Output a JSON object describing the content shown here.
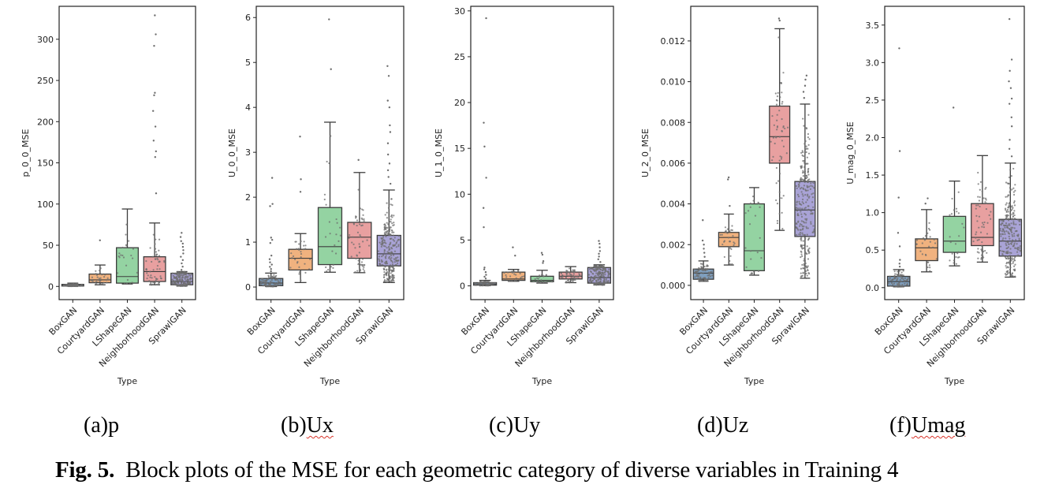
{
  "figure": {
    "caption_label": "Fig. 5.",
    "caption_text": "Block plots of the MSE for each geometric category of diverse variables in Training 4"
  },
  "sublabels": [
    {
      "prefix": "(a)",
      "var": "p",
      "squiggle": false
    },
    {
      "prefix": "(b)",
      "var": "Ux",
      "squiggle": true
    },
    {
      "prefix": "(c)",
      "var": "Uy",
      "squiggle": false
    },
    {
      "prefix": "(d)",
      "var": "Uz",
      "squiggle": false
    },
    {
      "prefix": "(f)",
      "var": "Umag",
      "squiggle": true
    }
  ],
  "colors": {
    "BoxGAN": "#7f9fbf",
    "CourtyardGAN": "#f0b27f",
    "LShapeGAN": "#94d3a2",
    "NeighborhoodGAN": "#e8a0a0",
    "SprawlGAN": "#a9a3d6"
  },
  "chart_data": [
    {
      "type": "box",
      "title": "",
      "xlabel": "Type",
      "ylabel": "p_0_0_MSE",
      "categories": [
        "BoxGAN",
        "CourtyardGAN",
        "LShapeGAN",
        "NeighborhoodGAN",
        "SprawlGAN"
      ],
      "ylim": [
        -16,
        340
      ],
      "yticks": [
        0,
        50,
        100,
        150,
        200,
        250,
        300
      ],
      "ytick_labels": [
        "0",
        "50",
        "100",
        "150",
        "200",
        "250",
        "300"
      ],
      "boxes": [
        {
          "whislo": 0.2,
          "q1": 0.5,
          "med": 1.2,
          "q3": 2.5,
          "whishi": 4,
          "fliers": []
        },
        {
          "whislo": 2,
          "q1": 4.5,
          "med": 8,
          "q3": 15,
          "whishi": 26,
          "fliers": [
            56
          ]
        },
        {
          "whislo": 3,
          "q1": 4,
          "med": 12,
          "q3": 47,
          "whishi": 94,
          "fliers": []
        },
        {
          "whislo": 2,
          "q1": 6,
          "med": 18,
          "q3": 36,
          "whishi": 77,
          "fliers": [
            113,
            157,
            164,
            177,
            194,
            213,
            232,
            235,
            292,
            306,
            329
          ]
        },
        {
          "whislo": 0.5,
          "q1": 2,
          "med": 6,
          "q3": 16,
          "whishi": 18,
          "fliers": [
            20,
            24,
            28,
            32,
            36,
            40,
            44,
            48,
            52,
            55,
            60,
            65
          ]
        }
      ],
      "grid": false
    },
    {
      "type": "box",
      "title": "",
      "xlabel": "Type",
      "ylabel": "U_0_0_MSE",
      "categories": [
        "BoxGAN",
        "CourtyardGAN",
        "LShapeGAN",
        "NeighborhoodGAN",
        "SprawlGAN"
      ],
      "ylim": [
        -0.28,
        6.25
      ],
      "yticks": [
        0,
        1,
        2,
        3,
        4,
        5,
        6
      ],
      "ytick_labels": [
        "0",
        "1",
        "2",
        "3",
        "4",
        "5",
        "6"
      ],
      "boxes": [
        {
          "whislo": 0.01,
          "q1": 0.03,
          "med": 0.09,
          "q3": 0.19,
          "whishi": 0.31,
          "fliers": [
            0.35,
            0.4,
            0.45,
            0.5,
            0.55,
            0.62,
            0.7,
            0.98,
            1.05,
            1.1,
            1.8,
            1.85,
            2.43
          ]
        },
        {
          "whislo": 0.1,
          "q1": 0.38,
          "med": 0.64,
          "q3": 0.84,
          "whishi": 1.19,
          "fliers": [
            2.12,
            2.4,
            3.35
          ]
        },
        {
          "whislo": 0.33,
          "q1": 0.5,
          "med": 0.9,
          "q3": 1.77,
          "whishi": 3.67,
          "fliers": [
            4.85,
            5.96
          ]
        },
        {
          "whislo": 0.32,
          "q1": 0.64,
          "med": 1.11,
          "q3": 1.44,
          "whishi": 2.55,
          "fliers": [
            2.83
          ]
        },
        {
          "whislo": 0.1,
          "q1": 0.47,
          "med": 0.74,
          "q3": 1.15,
          "whishi": 2.16,
          "fliers": [
            2.3,
            2.45,
            2.6,
            2.75,
            2.95,
            3.2,
            3.45,
            3.6,
            4.0,
            4.15,
            4.7,
            4.92
          ]
        }
      ],
      "grid": false
    },
    {
      "type": "box",
      "title": "",
      "xlabel": "Type",
      "ylabel": "U_1_0_MSE",
      "categories": [
        "BoxGAN",
        "CourtyardGAN",
        "LShapeGAN",
        "NeighborhoodGAN",
        "SprawlGAN"
      ],
      "ylim": [
        -1.5,
        30.5
      ],
      "yticks": [
        0,
        5,
        10,
        15,
        20,
        25,
        30
      ],
      "ytick_labels": [
        "0",
        "5",
        "10",
        "15",
        "20",
        "25",
        "30"
      ],
      "boxes": [
        {
          "whislo": 0.02,
          "q1": 0.08,
          "med": 0.15,
          "q3": 0.35,
          "whishi": 0.6,
          "fliers": [
            0.8,
            1.0,
            1.2,
            1.5,
            1.8,
            2.0,
            6.4,
            8.5,
            11.8,
            15.2,
            17.8,
            29.2
          ]
        },
        {
          "whislo": 0.5,
          "q1": 0.6,
          "med": 0.75,
          "q3": 1.5,
          "whishi": 1.8,
          "fliers": [
            3.3,
            4.2
          ]
        },
        {
          "whislo": 0.3,
          "q1": 0.45,
          "med": 0.6,
          "q3": 1.05,
          "whishi": 1.7,
          "fliers": [
            2.5,
            2.7,
            3.4,
            3.6
          ]
        },
        {
          "whislo": 0.35,
          "q1": 0.75,
          "med": 1.05,
          "q3": 1.5,
          "whishi": 2.1,
          "fliers": []
        },
        {
          "whislo": 0.1,
          "q1": 0.3,
          "med": 0.9,
          "q3": 2.0,
          "whishi": 2.3,
          "fliers": [
            2.6,
            2.9,
            3.2,
            3.5,
            3.8,
            4.2,
            4.6,
            4.9
          ]
        }
      ],
      "grid": false
    },
    {
      "type": "box",
      "title": "",
      "xlabel": "Type",
      "ylabel": "U_2_0_MSE",
      "categories": [
        "BoxGAN",
        "CourtyardGAN",
        "LShapeGAN",
        "NeighborhoodGAN",
        "SprawlGAN"
      ],
      "ylim": [
        -0.0007,
        0.0137
      ],
      "yticks": [
        0,
        0.002,
        0.004,
        0.006,
        0.008,
        0.01,
        0.012
      ],
      "ytick_labels": [
        "0.000",
        "0.002",
        "0.004",
        "0.006",
        "0.008",
        "0.010",
        "0.012"
      ],
      "boxes": [
        {
          "whislo": 0.0002,
          "q1": 0.0003,
          "med": 0.0006,
          "q3": 0.0008,
          "whishi": 0.0012,
          "fliers": [
            0.0014,
            0.0016,
            0.0018,
            0.002,
            0.0022,
            0.0032
          ]
        },
        {
          "whislo": 0.001,
          "q1": 0.0019,
          "med": 0.00235,
          "q3": 0.0026,
          "whishi": 0.0035,
          "fliers": [
            0.0039,
            0.0052,
            0.0053
          ]
        },
        {
          "whislo": 0.0005,
          "q1": 0.00072,
          "med": 0.0017,
          "q3": 0.004,
          "whishi": 0.0048,
          "fliers": []
        },
        {
          "whislo": 0.0027,
          "q1": 0.006,
          "med": 0.0073,
          "q3": 0.0088,
          "whishi": 0.0126,
          "fliers": [
            0.013,
            0.0131
          ]
        },
        {
          "whislo": 0.00035,
          "q1": 0.0024,
          "med": 0.0037,
          "q3": 0.0051,
          "whishi": 0.0089,
          "fliers": [
            0.0092,
            0.0095,
            0.0098,
            0.0101,
            0.0103
          ]
        }
      ],
      "grid": false
    },
    {
      "type": "box",
      "title": "",
      "xlabel": "Type",
      "ylabel": "U_mag_0_MSE",
      "categories": [
        "BoxGAN",
        "CourtyardGAN",
        "LShapeGAN",
        "NeighborhoodGAN",
        "SprawlGAN"
      ],
      "ylim": [
        -0.16,
        3.75
      ],
      "yticks": [
        0.0,
        0.5,
        1.0,
        1.5,
        2.0,
        2.5,
        3.0,
        3.5
      ],
      "ytick_labels": [
        "0.0",
        "0.5",
        "1.0",
        "1.5",
        "2.0",
        "2.5",
        "3.0",
        "3.5"
      ],
      "boxes": [
        {
          "whislo": 0.01,
          "q1": 0.02,
          "med": 0.08,
          "q3": 0.15,
          "whishi": 0.24,
          "fliers": [
            0.28,
            0.32,
            0.37,
            0.55,
            0.73,
            1.2,
            1.82,
            3.19
          ]
        },
        {
          "whislo": 0.21,
          "q1": 0.36,
          "med": 0.53,
          "q3": 0.65,
          "whishi": 1.04,
          "fliers": [
            1.12,
            1.19
          ]
        },
        {
          "whislo": 0.29,
          "q1": 0.47,
          "med": 0.62,
          "q3": 0.95,
          "whishi": 1.42,
          "fliers": [
            2.4
          ]
        },
        {
          "whislo": 0.34,
          "q1": 0.56,
          "med": 0.67,
          "q3": 1.12,
          "whishi": 1.76,
          "fliers": []
        },
        {
          "whislo": 0.14,
          "q1": 0.42,
          "med": 0.62,
          "q3": 0.91,
          "whishi": 1.66,
          "fliers": [
            1.75,
            1.85,
            1.97,
            2.15,
            2.27,
            2.45,
            2.52,
            2.66,
            2.75,
            2.89,
            3.04,
            3.58
          ]
        }
      ],
      "grid": false
    }
  ]
}
